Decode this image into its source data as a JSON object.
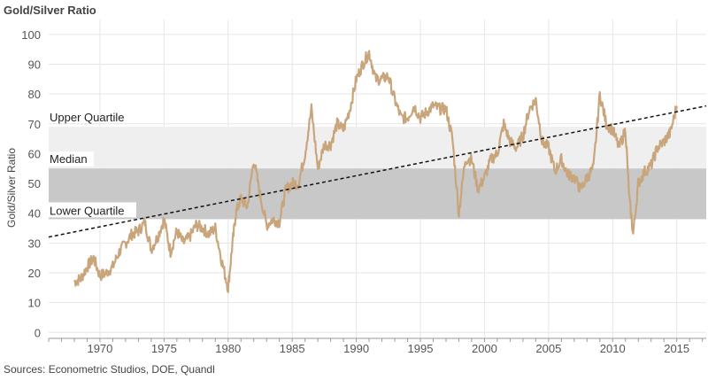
{
  "chart_data": {
    "type": "line",
    "title": "Gold/Silver Ratio",
    "ylabel": "Gold/Silver Ratio",
    "xlabel": "",
    "xlim": [
      1966.0,
      2017.3
    ],
    "ylim": [
      -2,
      105
    ],
    "yticks": [
      0,
      10,
      20,
      30,
      40,
      50,
      60,
      70,
      80,
      90,
      100
    ],
    "xticks": [
      1970,
      1975,
      1980,
      1985,
      1990,
      1995,
      2000,
      2005,
      2010,
      2015
    ],
    "grid": true,
    "colors": {
      "series": "#C9A57B",
      "band_upper": "#EFEFEF",
      "band_lower": "#C8C8C8",
      "trend": "#111111"
    },
    "bands": [
      {
        "name": "Upper Quartile",
        "from": 55,
        "to": 69
      },
      {
        "name": "Median",
        "value": 55
      },
      {
        "name": "Lower Quartile",
        "from": 38,
        "to": 55
      }
    ],
    "trendline": {
      "x": [
        1966.0,
        2017.3
      ],
      "y": [
        32,
        76
      ]
    },
    "series": [
      {
        "x": [
          1968.0,
          1968.5,
          1969.0,
          1969.5,
          1970.0,
          1970.5,
          1971.0,
          1971.5,
          1972.0,
          1972.5,
          1973.0,
          1973.5,
          1974.0,
          1974.5,
          1975.0,
          1975.5,
          1976.0,
          1976.5,
          1977.0,
          1977.5,
          1978.0,
          1978.5,
          1979.0,
          1979.5,
          1980.0,
          1980.3,
          1980.6,
          1981.0,
          1981.5,
          1982.0,
          1982.5,
          1983.0,
          1983.5,
          1984.0,
          1984.5,
          1985.0,
          1985.5,
          1986.0,
          1986.5,
          1987.0,
          1987.5,
          1988.0,
          1988.5,
          1989.0,
          1989.5,
          1990.0,
          1990.5,
          1991.0,
          1991.5,
          1992.0,
          1992.5,
          1993.0,
          1993.5,
          1994.0,
          1994.5,
          1995.0,
          1995.5,
          1996.0,
          1996.5,
          1997.0,
          1997.5,
          1998.0,
          1998.5,
          1999.0,
          1999.5,
          2000.0,
          2000.5,
          2001.0,
          2001.5,
          2002.0,
          2002.5,
          2003.0,
          2003.5,
          2004.0,
          2004.5,
          2005.0,
          2005.5,
          2006.0,
          2006.5,
          2007.0,
          2007.5,
          2008.0,
          2008.5,
          2009.0,
          2009.5,
          2010.0,
          2010.5,
          2011.0,
          2011.3,
          2011.6,
          2012.0,
          2012.5,
          2013.0,
          2013.5,
          2014.0,
          2014.5,
          2015.0
        ],
        "y": [
          17,
          18,
          22,
          25,
          19,
          20,
          22,
          27,
          30,
          33,
          34,
          37,
          28,
          32,
          38,
          27,
          34,
          30,
          32,
          36,
          35,
          33,
          35,
          24,
          15,
          28,
          40,
          45,
          42,
          58,
          46,
          36,
          38,
          37,
          48,
          50,
          50,
          60,
          75,
          55,
          63,
          63,
          70,
          68,
          75,
          85,
          90,
          94,
          85,
          85,
          86,
          78,
          72,
          72,
          76,
          72,
          74,
          76,
          75,
          75,
          65,
          40,
          58,
          58,
          48,
          52,
          58,
          60,
          70,
          64,
          62,
          66,
          75,
          78,
          64,
          62,
          54,
          58,
          53,
          52,
          48,
          52,
          55,
          80,
          70,
          68,
          62,
          68,
          45,
          33,
          50,
          54,
          56,
          62,
          64,
          67,
          76
        ]
      }
    ]
  }
}
